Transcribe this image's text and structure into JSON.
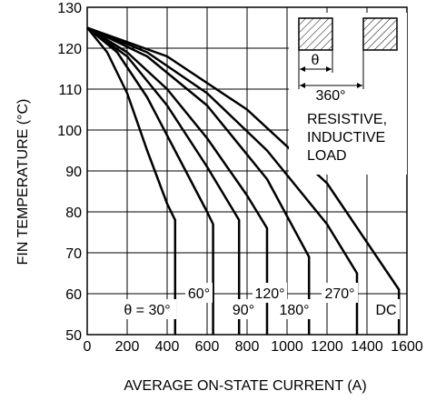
{
  "chart_data": {
    "type": "line",
    "xlabel": "AVERAGE ON-STATE CURRENT  (A)",
    "ylabel": "FIN TEMPERATURE  (°C)",
    "xlim": [
      0,
      1600
    ],
    "ylim": [
      50,
      130
    ],
    "x_ticks": [
      "0",
      "200",
      "400",
      "600",
      "800",
      "1000",
      "1200",
      "1400",
      "1600"
    ],
    "y_ticks": [
      "50",
      "60",
      "70",
      "80",
      "90",
      "100",
      "110",
      "120",
      "130"
    ],
    "grid": true,
    "series": [
      {
        "name": "θ = 30°",
        "x": [
          0,
          100,
          200,
          300,
          400,
          440,
          440
        ],
        "y": [
          125,
          119,
          109,
          95,
          82,
          78,
          50
        ]
      },
      {
        "name": "60°",
        "x": [
          0,
          150,
          300,
          450,
          600,
          630,
          630
        ],
        "y": [
          125,
          119,
          108,
          94,
          80,
          77,
          50
        ]
      },
      {
        "name": "90°",
        "x": [
          0,
          200,
          400,
          600,
          760,
          760
        ],
        "y": [
          125,
          118,
          106,
          91,
          78,
          50
        ]
      },
      {
        "name": "120°",
        "x": [
          0,
          200,
          400,
          600,
          800,
          900,
          900
        ],
        "y": [
          125,
          119,
          110,
          98,
          84,
          76,
          50
        ]
      },
      {
        "name": "180°",
        "x": [
          0,
          300,
          600,
          900,
          1110,
          1110
        ],
        "y": [
          125,
          118,
          106,
          88,
          69,
          50
        ]
      },
      {
        "name": "270°",
        "x": [
          0,
          300,
          600,
          900,
          1200,
          1350,
          1350
        ],
        "y": [
          125,
          119,
          109,
          95,
          77,
          65,
          50
        ]
      },
      {
        "name": "DC",
        "x": [
          0,
          400,
          800,
          1200,
          1560,
          1560
        ],
        "y": [
          125,
          118,
          105,
          87,
          61,
          50
        ]
      }
    ],
    "legend": {
      "theta_label": "θ",
      "period_label": "360°",
      "load_lines": [
        "RESISTIVE,",
        "INDUCTIVE",
        "LOAD"
      ]
    }
  }
}
